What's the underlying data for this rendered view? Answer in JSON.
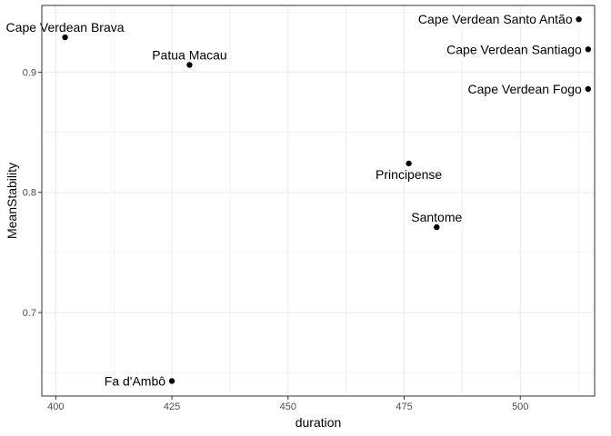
{
  "chart_data": {
    "type": "scatter",
    "title": "",
    "xlabel": "duration",
    "ylabel": "MeanStability",
    "xlim": [
      397,
      516
    ],
    "ylim": [
      0.6305,
      0.9555
    ],
    "xticks": [
      400,
      425,
      450,
      475,
      500
    ],
    "xtick_labels": [
      "400",
      "425",
      "450",
      "475",
      "500"
    ],
    "yticks": [
      0.7,
      0.8,
      0.9
    ],
    "ytick_labels": [
      "0.7",
      "0.8",
      "0.9"
    ],
    "grid": true,
    "legend": "none",
    "points": [
      {
        "label": "Cape Verdean Brava",
        "x": 402.0,
        "y": 0.929,
        "anchor": "middle",
        "pos": "above"
      },
      {
        "label": "Patua Macau",
        "x": 428.8,
        "y": 0.906,
        "anchor": "middle",
        "pos": "above"
      },
      {
        "label": "Cape Verdean Santo Antão",
        "x": 512.6,
        "y": 0.944,
        "anchor": "end",
        "pos": "left"
      },
      {
        "label": "Cape Verdean Santiago",
        "x": 514.6,
        "y": 0.919,
        "anchor": "end",
        "pos": "left"
      },
      {
        "label": "Cape Verdean Fogo",
        "x": 514.6,
        "y": 0.886,
        "anchor": "end",
        "pos": "left"
      },
      {
        "label": "Principense",
        "x": 476.0,
        "y": 0.824,
        "anchor": "middle",
        "pos": "below"
      },
      {
        "label": "Santome",
        "x": 482.0,
        "y": 0.771,
        "anchor": "middle",
        "pos": "above"
      },
      {
        "label": "Fa d'Ambô",
        "x": 425.0,
        "y": 0.643,
        "anchor": "end",
        "pos": "left"
      }
    ],
    "colors": {
      "point": "#000000",
      "grid": "#ebebeb",
      "panel_border": "#333333",
      "tick": "#333333"
    }
  }
}
